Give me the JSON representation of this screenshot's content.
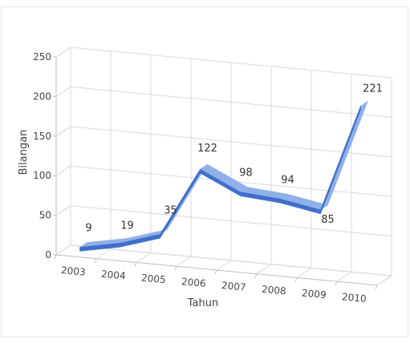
{
  "chart_data": {
    "type": "line",
    "title": "",
    "xlabel": "Tahun",
    "ylabel": "Bilangan",
    "categories": [
      "2003",
      "2004",
      "2005",
      "2006",
      "2007",
      "2008",
      "2009",
      "2010"
    ],
    "series": [
      {
        "values": [
          9,
          19,
          35,
          122,
          98,
          94,
          85,
          221
        ]
      }
    ],
    "data_labels": [
      "9",
      "19",
      "35",
      "122",
      "98",
      "94",
      "85",
      "221"
    ],
    "yticks": [
      "0",
      "50",
      "100",
      "150",
      "200",
      "250"
    ],
    "ylim": [
      0,
      250
    ],
    "grid": true,
    "legend": "none",
    "style": "3d-line",
    "line_color": "#3f6fca",
    "line_color_light": "#8fb0e8"
  }
}
